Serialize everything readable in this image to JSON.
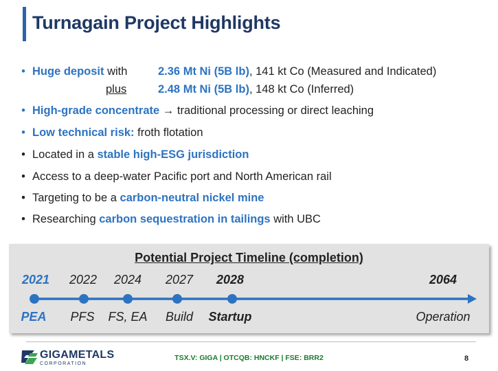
{
  "title": "Turnagain Project Highlights",
  "bullets": {
    "b1": {
      "hl": "Huge deposit",
      "rest": " with",
      "v1": "2.36 Mt Ni (5B lb)",
      "v1_rest": ", 141 kt Co (Measured and Indicated)",
      "plus": "plus",
      "v2": "2.48 Mt Ni (5B lb)",
      "v2_rest": ", 148 kt Co (Inferred)"
    },
    "b2": {
      "hl": "High-grade concentrate",
      "arrow": " → ",
      "rest": "traditional processing or direct leaching"
    },
    "b3": {
      "hl": "Low technical risk:",
      "rest": " froth flotation"
    },
    "b4": {
      "pre": "Located in a ",
      "hl": "stable high-ESG jurisdiction"
    },
    "b5": {
      "pre": "Access to a deep-water Pacific port and North American rail"
    },
    "b6": {
      "pre": "Targeting to be a ",
      "hl": "carbon-neutral nickel mine"
    },
    "b7": {
      "pre": "Researching ",
      "hl": "carbon sequestration in tailings",
      "rest": " with UBC"
    }
  },
  "timeline": {
    "title": "Potential Project Timeline (completion)",
    "milestones": [
      {
        "year": "2021",
        "label": "PEA"
      },
      {
        "year": "2022",
        "label": "PFS"
      },
      {
        "year": "2024",
        "label": "FS, EA"
      },
      {
        "year": "2027",
        "label": "Build"
      },
      {
        "year": "2028",
        "label": "Startup"
      },
      {
        "year": "2064",
        "label": "Operation"
      }
    ]
  },
  "footer": {
    "logo_name": "GIGAMETALS",
    "logo_sub": "CORPORATION",
    "ticker": "TSX.V: GIGA | OTCQB: HNCKF | FSE: BRR2",
    "page": "8"
  },
  "colors": {
    "accent": "#2d73c1",
    "title": "#1f3864",
    "ticker": "#1a7a2e",
    "timeline_bg": "#e2e2e2"
  }
}
